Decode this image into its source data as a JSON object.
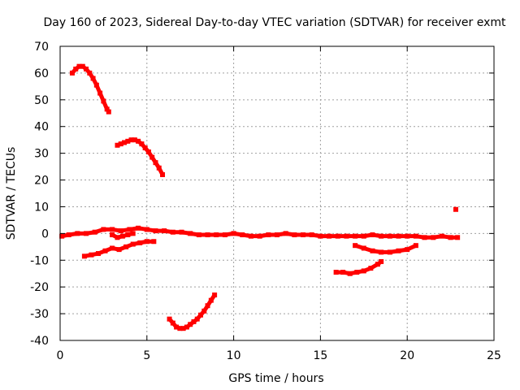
{
  "chart_data": {
    "type": "scatter",
    "title": "Day 160 of 2023, Sidereal Day-to-day VTEC variation (SDTVAR) for receiver exmt",
    "xlabel": "GPS time / hours",
    "ylabel": "SDTVAR / TECUs",
    "xlim": [
      0,
      25
    ],
    "ylim": [
      -40,
      70
    ],
    "xticks": [
      0,
      5,
      10,
      15,
      20,
      25
    ],
    "yticks": [
      -40,
      -30,
      -20,
      -10,
      0,
      10,
      20,
      30,
      40,
      50,
      60,
      70
    ],
    "grid": true,
    "marker_color": "#ff0000",
    "series": [
      {
        "name": "arc-high-early",
        "x": [
          0.7,
          0.9,
          1.1,
          1.3,
          1.5,
          1.7,
          1.9,
          2.1,
          2.3,
          2.5,
          2.7,
          2.8
        ],
        "y": [
          60,
          61.5,
          62.5,
          62.5,
          61.5,
          60,
          58,
          55.5,
          52.5,
          49.5,
          46.5,
          45.5
        ]
      },
      {
        "name": "arc-mid",
        "x": [
          3.3,
          3.5,
          3.7,
          3.9,
          4.1,
          4.3,
          4.5,
          4.7,
          4.9,
          5.1,
          5.3,
          5.5,
          5.7,
          5.9
        ],
        "y": [
          33,
          33.5,
          34,
          34.5,
          35,
          35,
          34.5,
          33.5,
          32,
          30.5,
          28.5,
          26.5,
          24.5,
          22
        ]
      },
      {
        "name": "baseline",
        "x": [
          0.1,
          0.5,
          1.0,
          1.5,
          2.0,
          2.5,
          3.0,
          3.5,
          4.0,
          4.5,
          5.0,
          5.5,
          6.0,
          6.5,
          7.0,
          7.5,
          8.0,
          8.5,
          9.0,
          9.5,
          10.0,
          10.5,
          11.0,
          11.5,
          12.0,
          12.5,
          13.0,
          13.5,
          14.0,
          14.5,
          15.0,
          15.5,
          16.0,
          16.5,
          17.0,
          17.5,
          18.0,
          18.5,
          19.0,
          19.5,
          20.0,
          20.5,
          21.0,
          21.5,
          22.0,
          22.5,
          22.9
        ],
        "y": [
          -1,
          -0.5,
          0,
          0,
          0.5,
          1.5,
          1.5,
          1,
          1.5,
          2,
          1.5,
          1,
          1,
          0.5,
          0.5,
          0,
          -0.5,
          -0.5,
          -0.5,
          -0.5,
          0,
          -0.5,
          -1,
          -1,
          -0.5,
          -0.5,
          0,
          -0.5,
          -0.5,
          -0.5,
          -1,
          -1,
          -1,
          -1,
          -1,
          -1,
          -0.5,
          -1,
          -1,
          -1,
          -1,
          -1,
          -1.5,
          -1.5,
          -1,
          -1.5,
          -1.5
        ]
      },
      {
        "name": "baseline-dip",
        "x": [
          3.0,
          3.3,
          3.6,
          3.9,
          4.2
        ],
        "y": [
          -0.5,
          -1.5,
          -1,
          -0.5,
          0
        ]
      },
      {
        "name": "arc-negative-early",
        "x": [
          1.4,
          1.8,
          2.2,
          2.6,
          3.0,
          3.4,
          3.8,
          4.2,
          4.6,
          5.0,
          5.4
        ],
        "y": [
          -8.5,
          -8,
          -7.5,
          -6.5,
          -5.5,
          -6,
          -5,
          -4,
          -3.5,
          -3,
          -3
        ]
      },
      {
        "name": "arc-low",
        "x": [
          6.3,
          6.5,
          6.7,
          6.9,
          7.1,
          7.3,
          7.5,
          7.7,
          7.9,
          8.1,
          8.3,
          8.5,
          8.7,
          8.9
        ],
        "y": [
          -32,
          -33.5,
          -35,
          -35.5,
          -35.5,
          -35,
          -34,
          -33,
          -32,
          -30.5,
          -29,
          -27,
          -25,
          -23
        ]
      },
      {
        "name": "arc-negative-late",
        "x": [
          15.9,
          16.3,
          16.7,
          17.1,
          17.5,
          17.9,
          18.3,
          18.5
        ],
        "y": [
          -14.5,
          -14.5,
          -15,
          -14.5,
          -14,
          -13,
          -11.5,
          -10.5
        ]
      },
      {
        "name": "arc-negative-late-2",
        "x": [
          17.0,
          17.5,
          18.0,
          18.5,
          19.0,
          19.5,
          20.0,
          20.5
        ],
        "y": [
          -4.5,
          -5.5,
          -6.5,
          -7,
          -7,
          -6.5,
          -6,
          -4.5
        ]
      },
      {
        "name": "outlier",
        "x": [
          22.8
        ],
        "y": [
          9
        ]
      }
    ]
  }
}
